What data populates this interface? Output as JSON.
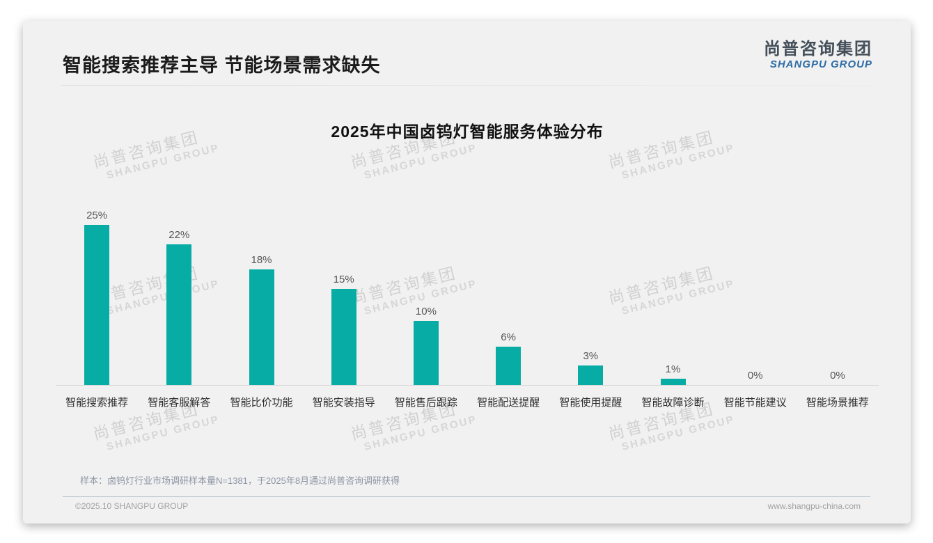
{
  "header": {
    "title": "智能搜索推荐主导 节能场景需求缺失",
    "logo": {
      "cn": "尚普咨询集团",
      "en": "SHANGPU GROUP"
    }
  },
  "chart_data": {
    "type": "bar",
    "title": "2025年中国卤钨灯智能服务体验分布",
    "categories": [
      "智能搜索推荐",
      "智能客服解答",
      "智能比价功能",
      "智能安装指导",
      "智能售后跟踪",
      "智能配送提醒",
      "智能使用提醒",
      "智能故障诊断",
      "智能节能建议",
      "智能场景推荐"
    ],
    "values": [
      25,
      22,
      18,
      15,
      10,
      6,
      3,
      1,
      0,
      0
    ],
    "value_labels": [
      "25%",
      "22%",
      "18%",
      "15%",
      "10%",
      "6%",
      "3%",
      "1%",
      "0%",
      "0%"
    ],
    "xlabel": "",
    "ylabel": "",
    "ylim": [
      0,
      25
    ],
    "grid": false,
    "legend": false,
    "bar_color": "#07aca5"
  },
  "note": "样本：卤钨灯行业市场调研样本量N=1381，于2025年8月通过尚普咨询调研获得",
  "footer": {
    "left": "©2025.10 SHANGPU GROUP",
    "right": "www.shangpu-china.com"
  },
  "watermark": {
    "cn": "尚普咨询集团",
    "en": "SHANGPU GROUP"
  },
  "colors": {
    "bar": "#07aca5",
    "card_bg": "#f1f1f1",
    "logo_cn": "#454f5a",
    "logo_en": "#2e6ca5",
    "axis_line": "#d8d8d8"
  }
}
